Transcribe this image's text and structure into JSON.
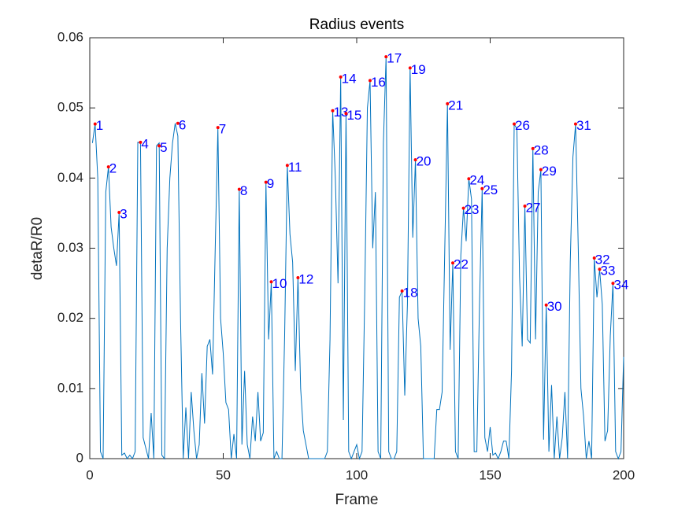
{
  "chart_data": {
    "type": "line",
    "title": "Radius events",
    "xlabel": "Frame",
    "ylabel": "detaR/R0",
    "xlim": [
      0,
      200
    ],
    "ylim": [
      0,
      0.06
    ],
    "xticks": [
      0,
      50,
      100,
      150,
      200
    ],
    "yticks": [
      0,
      0.01,
      0.02,
      0.03,
      0.04,
      0.05,
      0.06
    ],
    "series": [
      {
        "color": "#0072bd",
        "x": [
          1,
          2,
          3,
          4,
          5,
          6,
          7,
          8,
          9,
          10,
          11,
          12,
          13,
          14,
          15,
          16,
          17,
          18,
          19,
          20,
          21,
          22,
          23,
          24,
          25,
          26,
          27,
          28,
          29,
          30,
          31,
          32,
          33,
          34,
          35,
          36,
          37,
          38,
          39,
          40,
          41,
          42,
          43,
          44,
          45,
          46,
          47,
          48,
          49,
          50,
          51,
          52,
          53,
          54,
          55,
          56,
          57,
          58,
          59,
          60,
          61,
          62,
          63,
          64,
          65,
          66,
          67,
          68,
          69,
          70,
          71,
          72,
          73,
          74,
          75,
          76,
          77,
          78,
          79,
          80,
          81,
          82,
          83,
          84,
          85,
          86,
          87,
          88,
          89,
          90,
          91,
          92,
          93,
          94,
          95,
          96,
          97,
          98,
          99,
          100,
          101,
          102,
          103,
          104,
          105,
          106,
          107,
          108,
          109,
          110,
          111,
          112,
          113,
          114,
          115,
          116,
          117,
          118,
          119,
          120,
          121,
          122,
          123,
          124,
          125,
          126,
          127,
          128,
          129,
          130,
          131,
          132,
          133,
          134,
          135,
          136,
          137,
          138,
          139,
          140,
          141,
          142,
          143,
          144,
          145,
          146,
          147,
          148,
          149,
          150,
          151,
          152,
          153,
          154,
          155,
          156,
          157,
          158,
          159,
          160,
          161,
          162,
          163,
          164,
          165,
          166,
          167,
          168,
          169,
          170,
          171,
          172,
          173,
          174,
          175,
          176,
          177,
          178,
          179,
          180,
          181,
          182,
          183,
          184,
          185,
          186,
          187,
          188,
          189,
          190,
          191,
          192,
          193,
          194,
          195,
          196,
          197,
          198,
          199,
          200
        ],
        "values": [
          0.045,
          0.0477,
          0.04,
          0.001,
          0,
          0.038,
          0.0416,
          0.033,
          0.03,
          0.0275,
          0.0351,
          0.0005,
          0.0008,
          0,
          0.0005,
          0,
          0.001,
          0.0451,
          0.045,
          0.003,
          0.0015,
          0,
          0.0065,
          0,
          0.0446,
          0.045,
          0.0005,
          0,
          0.03,
          0.04,
          0.045,
          0.0478,
          0.046,
          0.02,
          0,
          0.0073,
          0,
          0.0095,
          0.004,
          0,
          0.002,
          0.0122,
          0.005,
          0.016,
          0.017,
          0.012,
          0.03,
          0.0472,
          0.02,
          0.015,
          0.008,
          0.007,
          0,
          0.0035,
          0,
          0.0384,
          0.002,
          0.0125,
          0.002,
          0,
          0.006,
          0.0025,
          0.0095,
          0.0025,
          0.0037,
          0.0394,
          0.017,
          0.0252,
          0,
          0.001,
          0,
          0,
          0.0175,
          0.0418,
          0.032,
          0.028,
          0.0125,
          0.0258,
          0.01,
          0.004,
          0.002,
          0,
          0,
          0,
          0,
          0,
          0,
          0,
          0.001,
          0.017,
          0.0496,
          0.04,
          0.025,
          0.0544,
          0.0055,
          0.0492,
          0.001,
          0,
          0.001,
          0.002,
          0,
          0.001,
          0.023,
          0.05,
          0.0539,
          0.03,
          0.038,
          0.001,
          0,
          0.045,
          0.0573,
          0.001,
          0,
          0,
          0.001,
          0.023,
          0.0239,
          0.009,
          0.022,
          0.0557,
          0.0315,
          0.0426,
          0.02,
          0.016,
          0,
          0,
          0,
          0,
          0,
          0.007,
          0.007,
          0.0095,
          0.03,
          0.0506,
          0.0155,
          0.0279,
          0.001,
          0,
          0.029,
          0.0357,
          0.031,
          0.0399,
          0.037,
          0.001,
          0.001,
          0.022,
          0.0385,
          0.003,
          0.001,
          0.0045,
          0.0005,
          0.0008,
          0,
          0.001,
          0.0025,
          0.0025,
          0,
          0.0125,
          0.0477,
          0.047,
          0.026,
          0.016,
          0.036,
          0.017,
          0.0165,
          0.0442,
          0.017,
          0.038,
          0.0412,
          0.0027,
          0.0219,
          0.001,
          0.0105,
          0,
          0.006,
          0,
          0.003,
          0.0095,
          0,
          0.028,
          0.043,
          0.0477,
          0.03,
          0.01,
          0.006,
          0,
          0.0025,
          0,
          0.0286,
          0.023,
          0.027,
          0.022,
          0.0025,
          0.004,
          0.0175,
          0.025,
          0.001,
          0,
          0.001,
          0.0145
        ]
      },
      {
        "color": "#ff0000",
        "label_color": "#0000ff",
        "x": [
          2,
          7,
          11,
          19,
          26,
          33,
          48,
          56,
          66,
          68,
          74,
          78,
          91,
          94,
          96,
          105,
          111,
          117,
          120,
          122,
          134,
          136,
          140,
          142,
          147,
          159,
          163,
          166,
          169,
          171,
          182,
          189,
          191,
          196
        ],
        "values": [
          0.0477,
          0.0416,
          0.0351,
          0.0451,
          0.0446,
          0.0478,
          0.0472,
          0.0384,
          0.0394,
          0.0252,
          0.0418,
          0.0258,
          0.0496,
          0.0544,
          0.0492,
          0.0539,
          0.0573,
          0.0239,
          0.0557,
          0.0426,
          0.0506,
          0.0279,
          0.0357,
          0.0399,
          0.0385,
          0.0477,
          0.036,
          0.0442,
          0.0412,
          0.0219,
          0.0477,
          0.0286,
          0.027,
          0.025
        ],
        "labels": [
          "1",
          "2",
          "3",
          "4",
          "5",
          "6",
          "7",
          "8",
          "9",
          "10",
          "11",
          "12",
          "13",
          "14",
          "15",
          "16",
          "17",
          "18",
          "19",
          "20",
          "21",
          "22",
          "23",
          "24",
          "25",
          "26",
          "27",
          "28",
          "29",
          "30",
          "31",
          "32",
          "33",
          "34"
        ]
      }
    ]
  }
}
